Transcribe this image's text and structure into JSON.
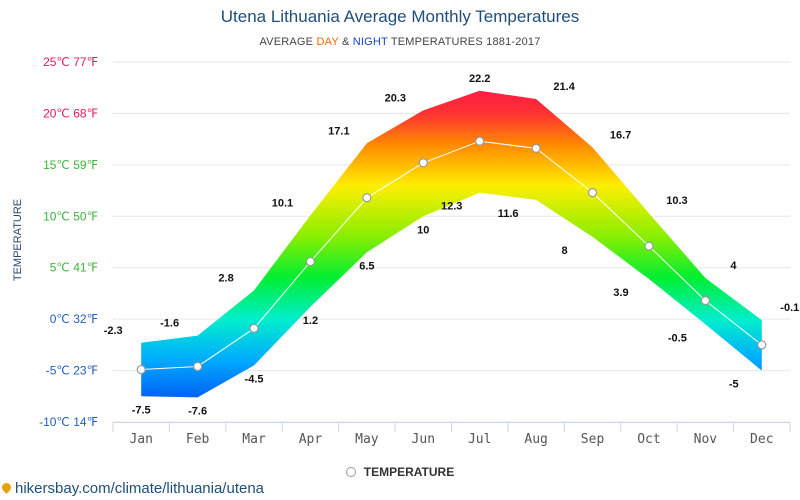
{
  "chart_data": {
    "type": "area",
    "title": "Utena Lithuania Average Monthly Temperatures",
    "subtitle": {
      "prefix": "AVERAGE ",
      "day_word": "DAY",
      "middle": " & ",
      "night_word": "NIGHT",
      "suffix": " TEMPERATURES 1881-2017"
    },
    "ylabel": "TEMPERATURE",
    "categories": [
      "Jan",
      "Feb",
      "Mar",
      "Apr",
      "May",
      "Jun",
      "Jul",
      "Aug",
      "Sep",
      "Oct",
      "Nov",
      "Dec"
    ],
    "series": [
      {
        "name": "day",
        "values": [
          -2.3,
          -1.6,
          2.8,
          10.1,
          17.1,
          20.3,
          22.2,
          21.4,
          16.7,
          10.3,
          4,
          -0.1
        ]
      },
      {
        "name": "night",
        "values": [
          -7.5,
          -7.6,
          -4.5,
          1.2,
          6.5,
          10,
          12.3,
          11.6,
          8,
          3.9,
          -0.5,
          -5
        ]
      },
      {
        "name": "TEMPERATURE",
        "values": [
          -4.9,
          -4.6,
          -0.9,
          5.6,
          11.8,
          15.2,
          17.3,
          16.6,
          12.3,
          7.1,
          1.8,
          -2.5
        ]
      }
    ],
    "y_ticks": [
      {
        "value": 25,
        "label": "25℃ 77℉",
        "color": "#e8175d"
      },
      {
        "value": 20,
        "label": "20℃ 68℉",
        "color": "#e8175d"
      },
      {
        "value": 15,
        "label": "15℃ 59℉",
        "color": "#3cb43c"
      },
      {
        "value": 10,
        "label": "10℃ 50℉",
        "color": "#3cb43c"
      },
      {
        "value": 5,
        "label": "5℃ 41℉",
        "color": "#3cb43c"
      },
      {
        "value": 0,
        "label": "0℃ 32℉",
        "color": "#1f5fbf"
      },
      {
        "value": -5,
        "label": "-5℃ 23℉",
        "color": "#1f5fbf"
      },
      {
        "value": -10,
        "label": "-10℃ 14℉",
        "color": "#1f5fbf"
      }
    ],
    "ylim": [
      -10,
      25
    ],
    "grid": true,
    "legend": {
      "position": "bottom",
      "label": "TEMPERATURE"
    }
  },
  "footer": {
    "text": "hikersbay.com/climate/lithuania/utena"
  }
}
